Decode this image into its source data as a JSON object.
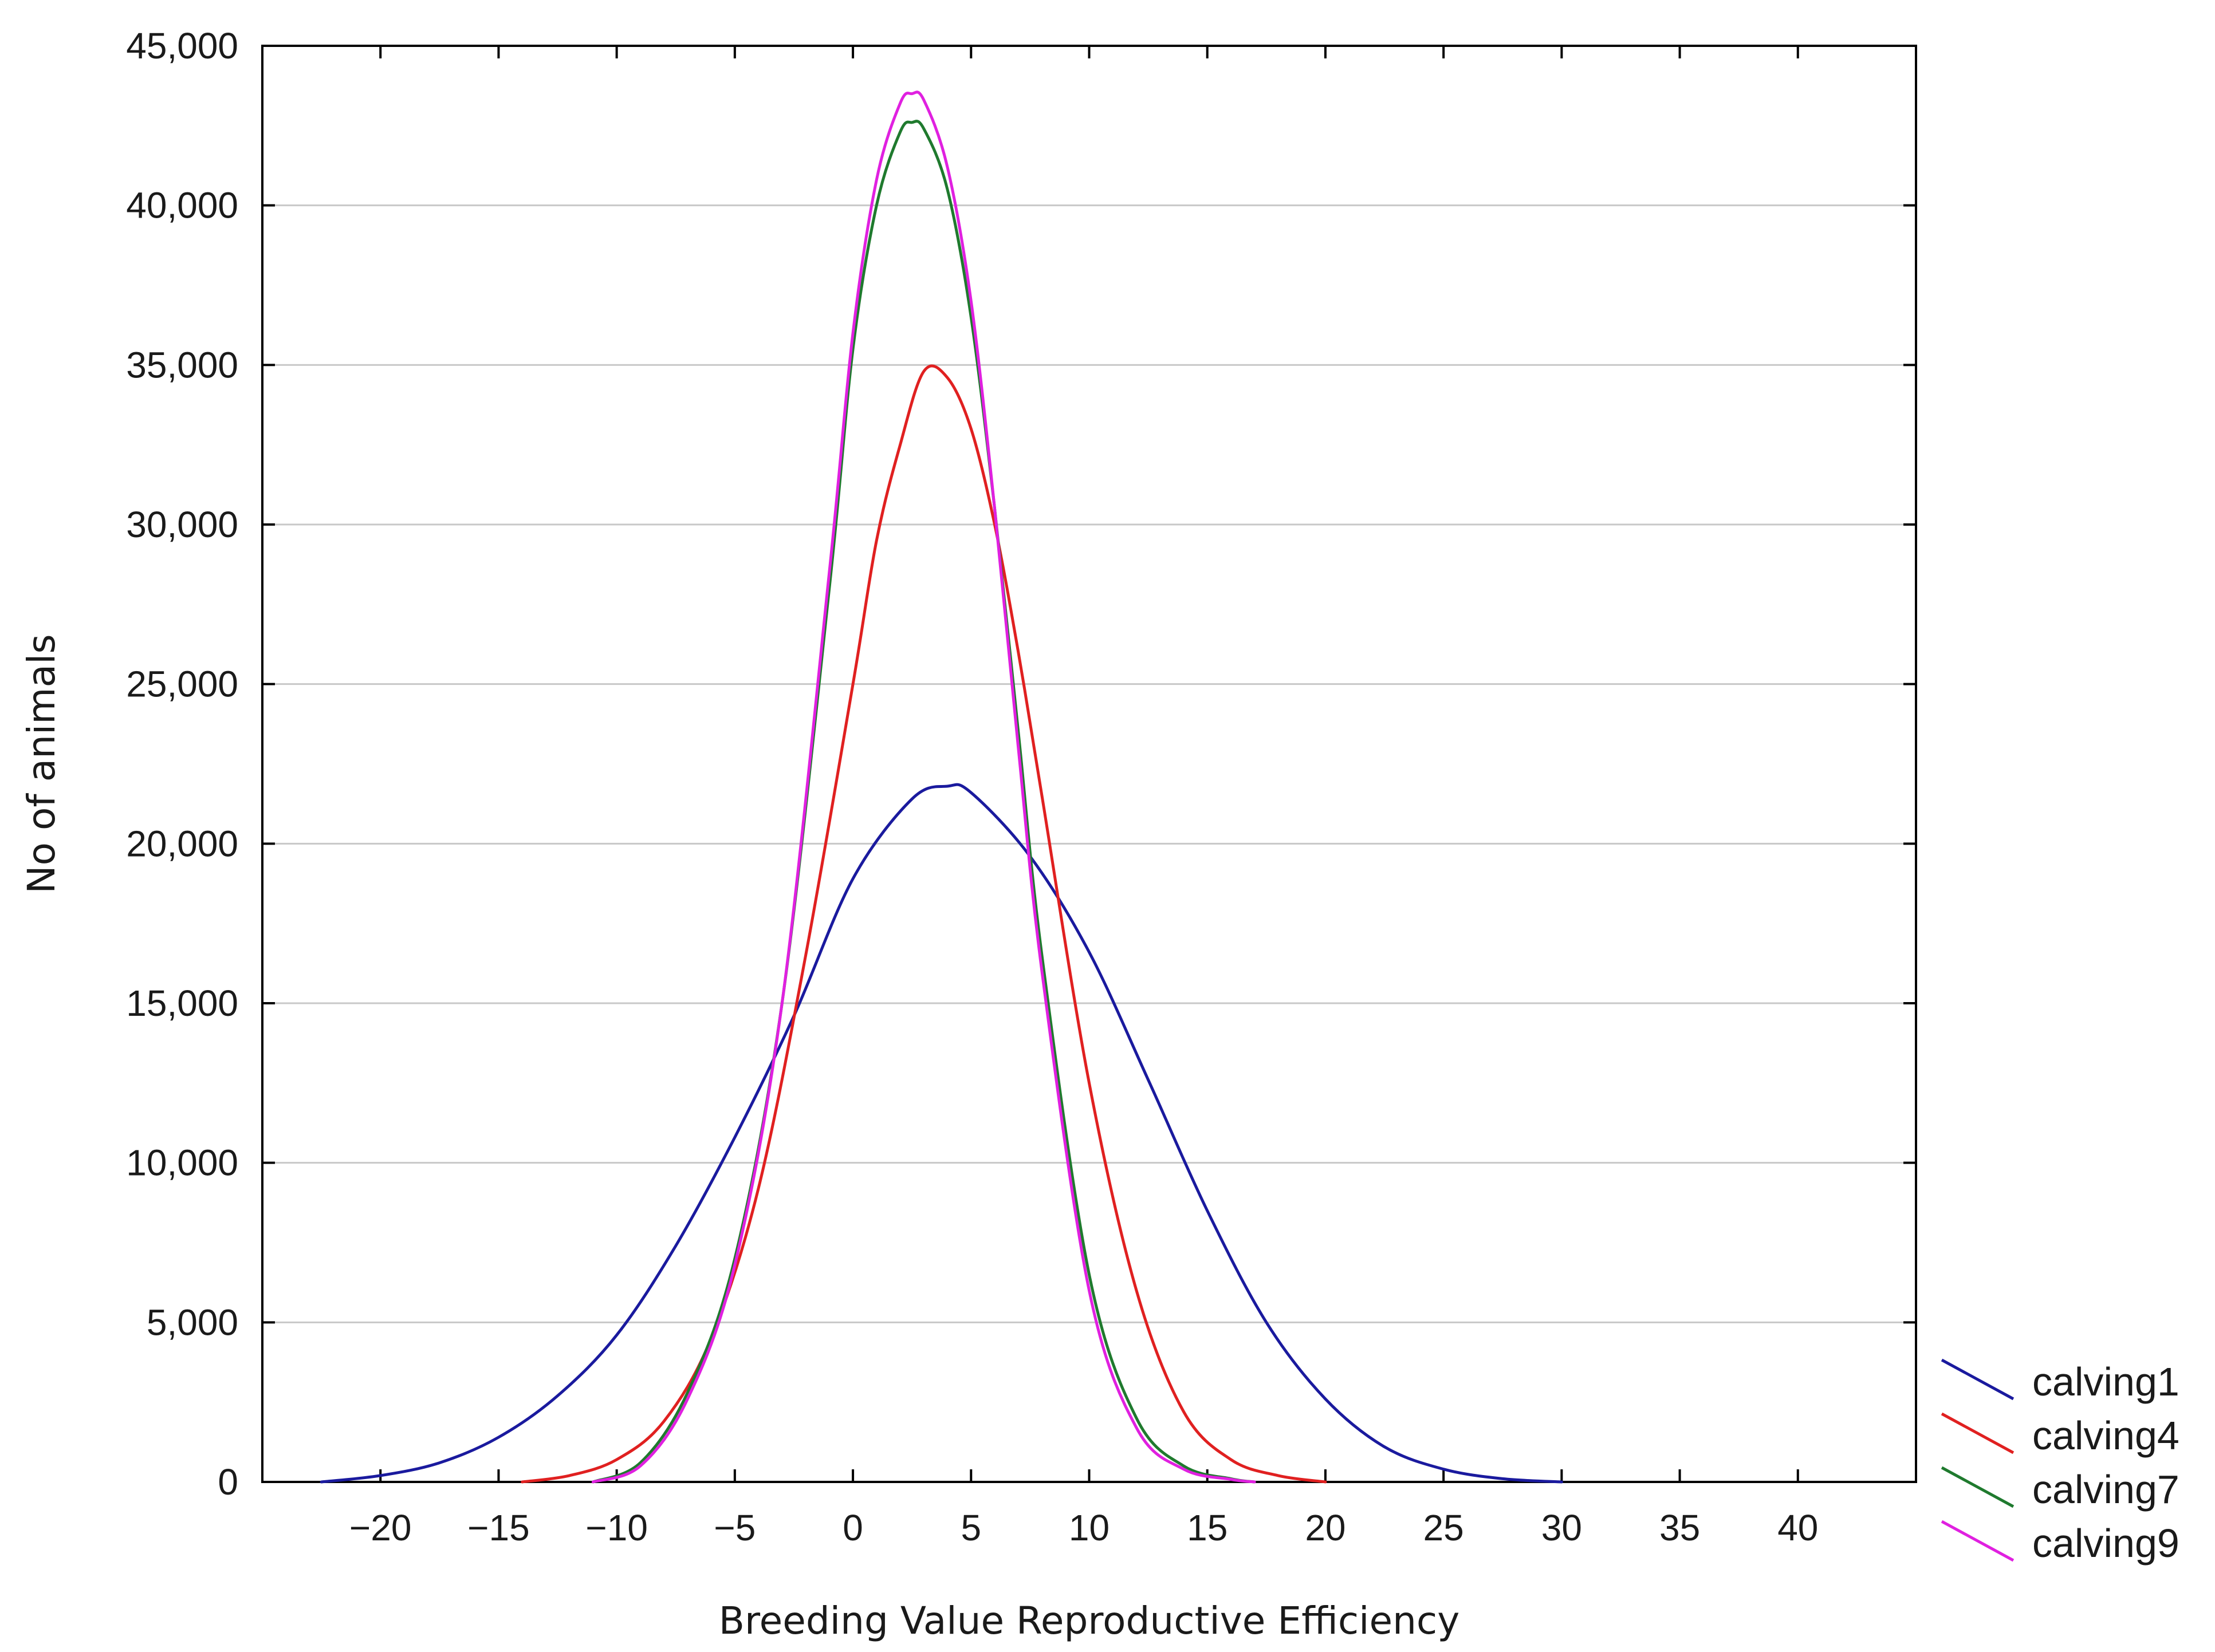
{
  "chart_data": {
    "type": "line",
    "title": "",
    "xlabel": "Breeding Value Reproductive Efficiency",
    "ylabel": "No of animals",
    "xlim": [
      -25,
      45
    ],
    "ylim": [
      0,
      45000
    ],
    "x_ticks": [
      -20,
      -15,
      -10,
      -5,
      0,
      5,
      10,
      15,
      20,
      25,
      30,
      35,
      40
    ],
    "x_tick_labels": [
      "−20",
      "−15",
      "−10",
      "−5",
      "0",
      "5",
      "10",
      "15",
      "20",
      "25",
      "30",
      "35",
      "40"
    ],
    "y_ticks": [
      0,
      5000,
      10000,
      15000,
      20000,
      25000,
      30000,
      35000,
      40000,
      45000
    ],
    "y_tick_labels": [
      "0",
      "5,000",
      "10,000",
      "15,000",
      "20,000",
      "25,000",
      "30,000",
      "35,000",
      "40,000",
      "45,000"
    ],
    "grid": true,
    "legend_position": "bottom-right, outside plot",
    "series": [
      {
        "name": "calving1",
        "color": "#1a1a9e",
        "x": [
          -22.5,
          -20,
          -17.5,
          -15,
          -12.5,
          -10,
          -7.5,
          -5,
          -2.5,
          0,
          2.5,
          4,
          5,
          7.5,
          10,
          12.5,
          15,
          17.5,
          20,
          22.5,
          25,
          27.5,
          30
        ],
        "values": [
          0,
          200,
          600,
          1400,
          2700,
          4600,
          7400,
          10800,
          14600,
          18900,
          21400,
          21800,
          21600,
          19600,
          16600,
          12600,
          8500,
          5000,
          2600,
          1100,
          400,
          100,
          0
        ]
      },
      {
        "name": "calving4",
        "color": "#e02020",
        "x": [
          -14,
          -12,
          -10,
          -8,
          -6,
          -4,
          -2,
          0,
          1,
          2,
          3,
          4,
          5,
          6,
          7,
          8,
          10,
          12,
          14,
          16,
          18,
          20
        ],
        "values": [
          0,
          200,
          700,
          1900,
          4500,
          9200,
          16500,
          25000,
          29500,
          32500,
          34800,
          34600,
          33000,
          30000,
          26000,
          21500,
          12500,
          6000,
          2200,
          700,
          200,
          0
        ]
      },
      {
        "name": "calving7",
        "color": "#1f7a2e",
        "x": [
          -11,
          -9,
          -7,
          -5,
          -3,
          -1,
          0,
          1,
          2,
          2.5,
          3,
          4,
          5,
          6,
          7,
          8,
          10,
          12,
          14,
          16,
          17
        ],
        "values": [
          0,
          600,
          2800,
          7000,
          15000,
          28000,
          35500,
          40000,
          42300,
          42600,
          42400,
          40500,
          36500,
          30500,
          23500,
          16500,
          6500,
          2000,
          500,
          100,
          0
        ]
      },
      {
        "name": "calving9",
        "color": "#e020e0",
        "x": [
          -11,
          -9,
          -7,
          -5,
          -3,
          -1,
          0,
          1,
          2,
          2.5,
          3,
          4,
          5,
          6,
          7,
          8,
          10,
          12,
          14,
          16,
          17
        ],
        "values": [
          0,
          500,
          2600,
          6800,
          15000,
          28500,
          36000,
          40800,
          43200,
          43500,
          43300,
          41200,
          37000,
          30500,
          23000,
          16000,
          6000,
          1700,
          400,
          80,
          0
        ]
      }
    ]
  }
}
